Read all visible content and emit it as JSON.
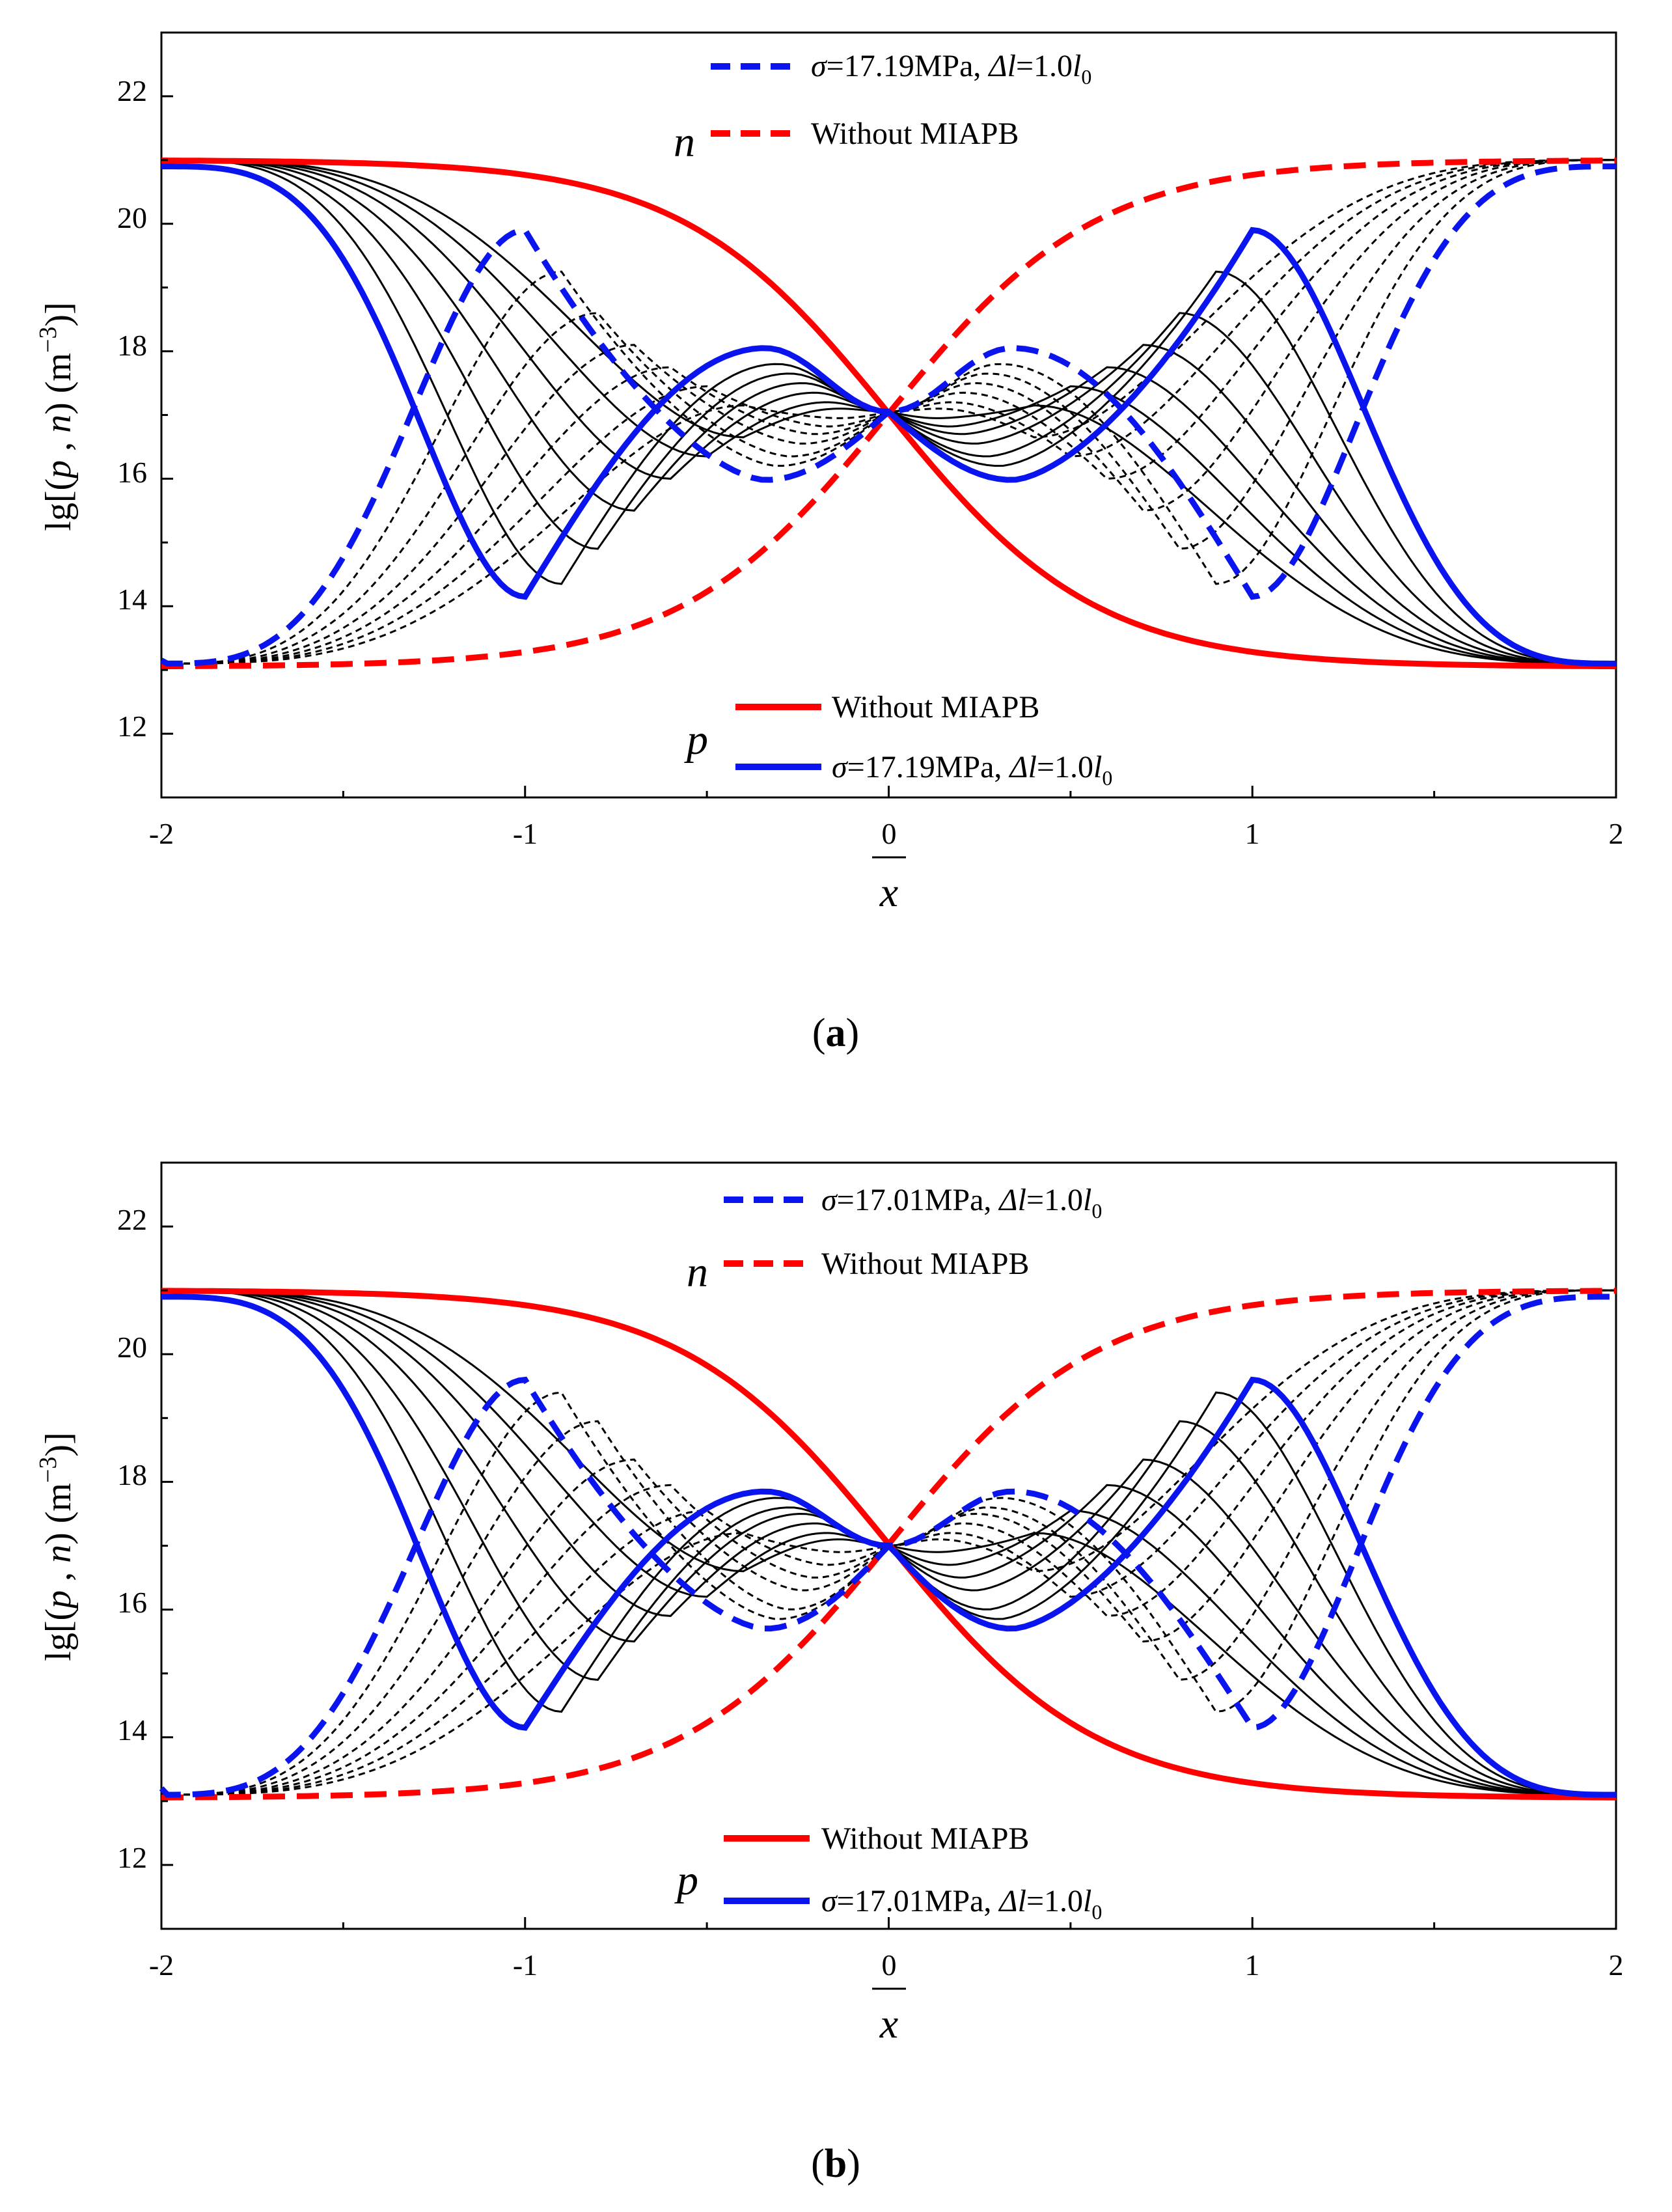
{
  "figure": {
    "colors": {
      "red": "#ff0000",
      "blue": "#0a14ee",
      "black": "#000000"
    }
  },
  "chart_data": [
    {
      "type": "line",
      "panel": "a",
      "caption": {
        "open": "(",
        "letter": "a",
        "close": ")"
      },
      "xlabel": "x",
      "ylabel": "lg[(p , n) (m−3)]",
      "ylabel_parts": {
        "prefix": "lg[(",
        "p": "p",
        "mid": " , ",
        "n": "n",
        "unit": ") (m",
        "exp": "−3",
        "suffix": ")]"
      },
      "xlim": [
        -2,
        2
      ],
      "ylim": [
        11,
        23
      ],
      "xticks": [
        "-2",
        "-1",
        "0",
        "1",
        "2"
      ],
      "yticks": [
        "12",
        "14",
        "16",
        "18",
        "20",
        "22"
      ],
      "n_group": {
        "symbol": "n",
        "legend": [
          {
            "label": "σ=17.19MPa, Δl=1.0l0",
            "sigma": "σ",
            "value": "=17.19MPa, ",
            "delta": "Δl",
            "eq": "=1.0",
            "l": "l",
            "sub": "0",
            "color": "#0a14ee",
            "style": "dashed"
          },
          {
            "label": "Without MIAPB",
            "text": "Without MIAPB",
            "color": "#ff0000",
            "style": "dashed"
          }
        ]
      },
      "p_group": {
        "symbol": "p",
        "legend": [
          {
            "label": "Without MIAPB",
            "text": "Without MIAPB",
            "color": "#ff0000",
            "style": "solid"
          },
          {
            "label": "σ=17.19MPa, Δl=1.0l0",
            "sigma": "σ",
            "value": "=17.19MPa, ",
            "delta": "Δl",
            "eq": "=1.0",
            "l": "l",
            "sub": "0",
            "color": "#0a14ee",
            "style": "solid"
          }
        ]
      },
      "baseline": {
        "high": 21,
        "low": 13.05,
        "steepness": 3.5
      },
      "barrier_family": {
        "positions": [
          0.4,
          0.5,
          0.6,
          0.7,
          0.8,
          0.9
        ],
        "highlight_position": 1.0,
        "p_left_min": [
          16.65,
          16.35,
          16.0,
          15.5,
          14.9,
          14.35
        ],
        "p_right_max": [
          17.15,
          17.45,
          17.75,
          18.1,
          18.6,
          19.25
        ],
        "p_mid_min": [
          16.95,
          16.82,
          16.7,
          16.55,
          16.35,
          16.2
        ],
        "p_mid_max": [
          17.1,
          17.2,
          17.35,
          17.5,
          17.65,
          17.8
        ],
        "highlight": {
          "p_left_min": 14.15,
          "p_right_max": 19.9,
          "p_mid_min": 15.98,
          "p_mid_max": 18.05,
          "n_outer_start": 13.15,
          "p_outer_start": 20.9
        }
      },
      "center_value": 17.05
    },
    {
      "type": "line",
      "panel": "b",
      "caption": {
        "open": "(",
        "letter": "b",
        "close": ")"
      },
      "xlabel": "x",
      "ylabel": "lg[(p , n) (m−3)]",
      "ylabel_parts": {
        "prefix": "lg[(",
        "p": "p",
        "mid": " , ",
        "n": "n",
        "unit": ") (m",
        "exp": "−3",
        "suffix": ")]"
      },
      "xlim": [
        -2,
        2
      ],
      "ylim": [
        11,
        23
      ],
      "xticks": [
        "-2",
        "-1",
        "0",
        "1",
        "2"
      ],
      "yticks": [
        "12",
        "14",
        "16",
        "18",
        "20",
        "22"
      ],
      "n_group": {
        "symbol": "n",
        "legend": [
          {
            "label": "σ=17.01MPa, Δl=1.0l0",
            "sigma": "σ",
            "value": "=17.01MPa, ",
            "delta": "Δl",
            "eq": "=1.0",
            "l": "l",
            "sub": "0",
            "color": "#0a14ee",
            "style": "dashed"
          },
          {
            "label": "Without MIAPB",
            "text": "Without MIAPB",
            "color": "#ff0000",
            "style": "dashed"
          }
        ]
      },
      "p_group": {
        "symbol": "p",
        "legend": [
          {
            "label": "Without MIAPB",
            "text": "Without MIAPB",
            "color": "#ff0000",
            "style": "solid"
          },
          {
            "label": "σ=17.01MPa, Δl=1.0l0",
            "sigma": "σ",
            "value": "=17.01MPa, ",
            "delta": "Δl",
            "eq": "=1.0",
            "l": "l",
            "sub": "0",
            "color": "#0a14ee",
            "style": "solid"
          }
        ]
      },
      "baseline": {
        "high": 21,
        "low": 13.05,
        "steepness": 3.5
      },
      "barrier_family": {
        "positions": [
          0.4,
          0.5,
          0.6,
          0.7,
          0.8,
          0.9
        ],
        "highlight_position": 1.0,
        "p_left_min": [
          16.6,
          16.2,
          15.9,
          15.5,
          14.9,
          14.4
        ],
        "p_right_max": [
          17.2,
          17.55,
          17.95,
          18.35,
          18.95,
          19.4
        ],
        "p_mid_min": [
          16.9,
          16.7,
          16.5,
          16.3,
          16.0,
          15.85
        ],
        "p_mid_max": [
          17.1,
          17.2,
          17.35,
          17.5,
          17.6,
          17.75
        ],
        "highlight": {
          "p_left_min": 14.15,
          "p_right_max": 19.6,
          "p_mid_min": 15.7,
          "p_mid_max": 17.85,
          "n_outer_start": 13.2,
          "p_outer_start": 20.9
        }
      },
      "center_value": 17.0
    }
  ]
}
